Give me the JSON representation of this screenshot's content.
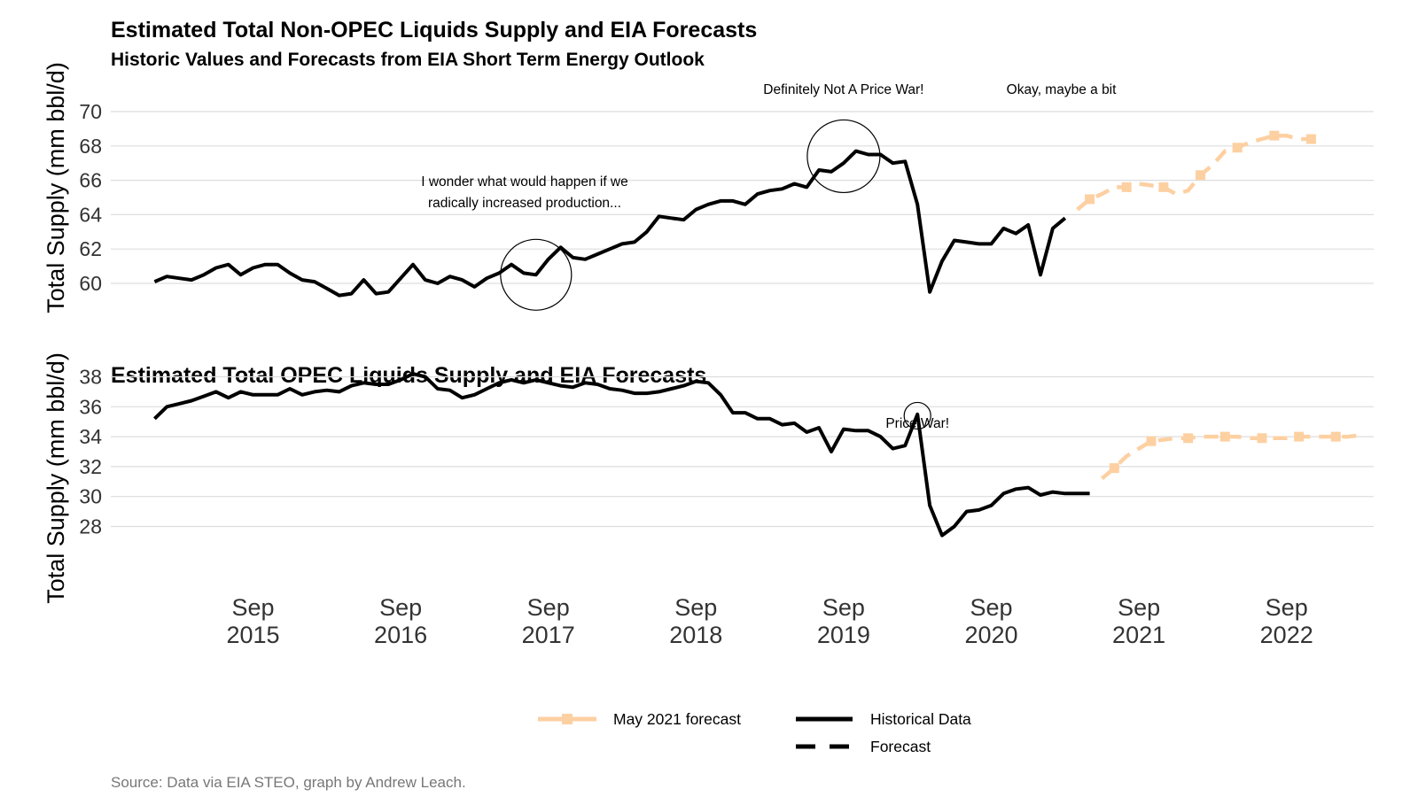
{
  "title": "Estimated Total Non-OPEC Liquids Supply and EIA Forecasts",
  "subtitle": "Historic Values and Forecasts from EIA Short Term Energy Outlook",
  "caption": "Source: Data via EIA STEO, graph by Andrew Leach.",
  "colors": {
    "historical": "#000000",
    "forecast": "#fdd0a2",
    "grid": "#dddddd"
  },
  "legend": {
    "forecast_label": "May 2021 forecast",
    "historical_label": "Historical Data",
    "forecast_style_label": "Forecast"
  },
  "x_ticks": [
    {
      "value": "2015-09",
      "line1": "Sep",
      "line2": "2015"
    },
    {
      "value": "2016-09",
      "line1": "Sep",
      "line2": "2016"
    },
    {
      "value": "2017-09",
      "line1": "Sep",
      "line2": "2017"
    },
    {
      "value": "2018-09",
      "line1": "Sep",
      "line2": "2018"
    },
    {
      "value": "2019-09",
      "line1": "Sep",
      "line2": "2019"
    },
    {
      "value": "2020-09",
      "line1": "Sep",
      "line2": "2020"
    },
    {
      "value": "2021-09",
      "line1": "Sep",
      "line2": "2021"
    },
    {
      "value": "2022-09",
      "line1": "Sep",
      "line2": "2022"
    }
  ],
  "chart_data": [
    {
      "type": "line",
      "title": "Estimated Total Non-OPEC Liquids Supply and EIA Forecasts",
      "subtitle": "Historic Values and Forecasts from EIA Short Term Energy Outlook",
      "ylabel": "Total Supply (mm bbl/d)",
      "ylim": [
        57.8,
        71
      ],
      "yticks": [
        60,
        62,
        64,
        66,
        68,
        70
      ],
      "grid": true,
      "legend_position": "bottom",
      "series": [
        {
          "name": "Historical Data",
          "style": "solid",
          "x": [
            "2015-01",
            "2015-02",
            "2015-03",
            "2015-04",
            "2015-05",
            "2015-06",
            "2015-07",
            "2015-08",
            "2015-09",
            "2015-10",
            "2015-11",
            "2015-12",
            "2016-01",
            "2016-02",
            "2016-03",
            "2016-04",
            "2016-05",
            "2016-06",
            "2016-07",
            "2016-08",
            "2016-09",
            "2016-10",
            "2016-11",
            "2016-12",
            "2017-01",
            "2017-02",
            "2017-03",
            "2017-04",
            "2017-05",
            "2017-06",
            "2017-07",
            "2017-08",
            "2017-09",
            "2017-10",
            "2017-11",
            "2017-12",
            "2018-01",
            "2018-02",
            "2018-03",
            "2018-04",
            "2018-05",
            "2018-06",
            "2018-07",
            "2018-08",
            "2018-09",
            "2018-10",
            "2018-11",
            "2018-12",
            "2019-01",
            "2019-02",
            "2019-03",
            "2019-04",
            "2019-05",
            "2019-06",
            "2019-07",
            "2019-08",
            "2019-09",
            "2019-10",
            "2019-11",
            "2019-12",
            "2020-01",
            "2020-02",
            "2020-03",
            "2020-04",
            "2020-05",
            "2020-06",
            "2020-07",
            "2020-08",
            "2020-09",
            "2020-10",
            "2020-11",
            "2020-12",
            "2021-01",
            "2021-02",
            "2021-03"
          ],
          "values": [
            60.1,
            60.4,
            60.3,
            60.2,
            60.5,
            60.9,
            61.1,
            60.5,
            60.9,
            61.1,
            61.1,
            60.6,
            60.2,
            60.1,
            59.7,
            59.3,
            59.4,
            60.2,
            59.4,
            59.5,
            60.3,
            61.1,
            60.2,
            60.0,
            60.4,
            60.2,
            59.8,
            60.3,
            60.6,
            61.1,
            60.6,
            60.5,
            61.4,
            62.1,
            61.5,
            61.4,
            61.7,
            62.0,
            62.3,
            62.4,
            63.0,
            63.9,
            63.8,
            63.7,
            64.3,
            64.6,
            64.8,
            64.8,
            64.6,
            65.2,
            65.4,
            65.5,
            65.8,
            65.6,
            66.6,
            66.5,
            67.0,
            67.7,
            67.5,
            67.5,
            67.0,
            67.1,
            64.6,
            59.5,
            61.3,
            62.5,
            62.4,
            62.3,
            62.3,
            63.2,
            62.9,
            63.4,
            60.5,
            63.2,
            63.8
          ]
        },
        {
          "name": "May 2021 forecast",
          "style": "dashed",
          "x": [
            "2021-04",
            "2021-05",
            "2021-06",
            "2021-07",
            "2021-08",
            "2021-09",
            "2021-10",
            "2021-11",
            "2021-12",
            "2022-01",
            "2022-02",
            "2022-03",
            "2022-04",
            "2022-05",
            "2022-06",
            "2022-07",
            "2022-08",
            "2022-09",
            "2022-10",
            "2022-11",
            "2022-12"
          ],
          "values": [
            64.3,
            64.9,
            65.2,
            65.6,
            65.6,
            65.8,
            65.7,
            65.6,
            65.2,
            65.4,
            66.3,
            66.9,
            67.7,
            67.9,
            68.2,
            68.4,
            68.6,
            68.6,
            68.4,
            68.4,
            68.4
          ]
        }
      ],
      "annotations": [
        {
          "text": "I wonder what would happen if we",
          "text2": "radically increased production...",
          "x": "2017-08",
          "y": 60.5
        },
        {
          "text": "Definitely Not A Price War!",
          "x": "2019-09",
          "y": 67.4
        },
        {
          "text": "Okay, maybe a bit",
          "x": "2021-05"
        }
      ]
    },
    {
      "type": "line",
      "title": "Estimated Total OPEC Liquids Supply and EIA Forecasts",
      "ylabel": "Total Supply (mm bbl/d)",
      "ylim": [
        26,
        39
      ],
      "yticks": [
        28,
        30,
        32,
        34,
        36,
        38
      ],
      "grid": true,
      "series": [
        {
          "name": "Historical Data",
          "style": "solid",
          "x": [
            "2015-01",
            "2015-02",
            "2015-03",
            "2015-04",
            "2015-05",
            "2015-06",
            "2015-07",
            "2015-08",
            "2015-09",
            "2015-10",
            "2015-11",
            "2015-12",
            "2016-01",
            "2016-02",
            "2016-03",
            "2016-04",
            "2016-05",
            "2016-06",
            "2016-07",
            "2016-08",
            "2016-09",
            "2016-10",
            "2016-11",
            "2016-12",
            "2017-01",
            "2017-02",
            "2017-03",
            "2017-04",
            "2017-05",
            "2017-06",
            "2017-07",
            "2017-08",
            "2017-09",
            "2017-10",
            "2017-11",
            "2017-12",
            "2018-01",
            "2018-02",
            "2018-03",
            "2018-04",
            "2018-05",
            "2018-06",
            "2018-07",
            "2018-08",
            "2018-09",
            "2018-10",
            "2018-11",
            "2018-12",
            "2019-01",
            "2019-02",
            "2019-03",
            "2019-04",
            "2019-05",
            "2019-06",
            "2019-07",
            "2019-08",
            "2019-09",
            "2019-10",
            "2019-11",
            "2019-12",
            "2020-01",
            "2020-02",
            "2020-03",
            "2020-04",
            "2020-05",
            "2020-06",
            "2020-07",
            "2020-08",
            "2020-09",
            "2020-10",
            "2020-11",
            "2020-12",
            "2021-01",
            "2021-02",
            "2021-03",
            "2021-04",
            "2021-05"
          ],
          "values": [
            35.2,
            36.0,
            36.2,
            36.4,
            36.7,
            37.0,
            36.6,
            37.0,
            36.8,
            36.8,
            36.8,
            37.2,
            36.8,
            37.0,
            37.1,
            37.0,
            37.4,
            37.6,
            37.5,
            37.5,
            37.8,
            38.2,
            38.0,
            37.2,
            37.1,
            36.6,
            36.8,
            37.2,
            37.6,
            37.8,
            37.6,
            37.8,
            37.6,
            37.4,
            37.3,
            37.6,
            37.5,
            37.2,
            37.1,
            36.9,
            36.9,
            37.0,
            37.2,
            37.4,
            37.7,
            37.6,
            36.8,
            35.6,
            35.6,
            35.2,
            35.2,
            34.8,
            34.9,
            34.3,
            34.6,
            33.0,
            34.5,
            34.4,
            34.4,
            34.0,
            33.2,
            33.4,
            35.5,
            29.4,
            27.4,
            28.0,
            29.0,
            29.1,
            29.4,
            30.2,
            30.5,
            30.6,
            30.1,
            30.3,
            30.2,
            30.2,
            30.2
          ]
        },
        {
          "name": "May 2021 forecast",
          "style": "dashed",
          "x": [
            "2021-06",
            "2021-07",
            "2021-08",
            "2021-09",
            "2021-10",
            "2021-11",
            "2021-12",
            "2022-01",
            "2022-02",
            "2022-03",
            "2022-04",
            "2022-05",
            "2022-06",
            "2022-07",
            "2022-08",
            "2022-09",
            "2022-10",
            "2022-11",
            "2022-12",
            "2023-01",
            "2023-02",
            "2023-03"
          ],
          "values": [
            31.2,
            31.9,
            32.7,
            33.2,
            33.7,
            33.8,
            33.9,
            33.9,
            34.0,
            34.0,
            34.0,
            34.0,
            33.9,
            33.9,
            33.9,
            33.9,
            34.0,
            34.0,
            34.0,
            34.0,
            34.0,
            34.1
          ]
        }
      ],
      "annotations": [
        {
          "text": "Price War!",
          "x": "2020-03",
          "y": 35.4
        }
      ]
    }
  ]
}
